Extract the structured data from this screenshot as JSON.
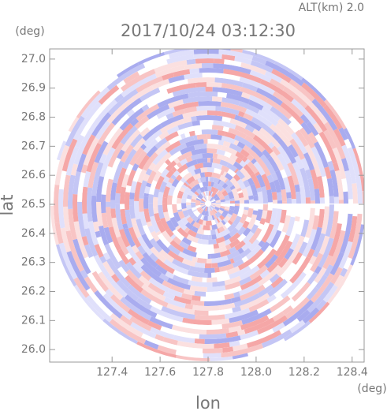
{
  "chart_data": {
    "type": "ppi",
    "title": "2017/10/24 03:12:30",
    "annotation": "ALT(km) 2.0",
    "x_label": "lon",
    "y_label": "lat",
    "x_unit": "(deg)",
    "y_unit": "(deg)",
    "xlim": [
      127.14,
      128.45
    ],
    "ylim": [
      25.957,
      27.035
    ],
    "xticks": [
      127.4,
      127.6,
      127.8,
      {
        "value": 128,
        "label": "128.0"
      },
      128.2,
      128.4
    ],
    "yticks": [
      {
        "value": 26,
        "label": "26.0"
      },
      26.1,
      26.2,
      26.3,
      26.4,
      26.5,
      26.6,
      26.7,
      26.8,
      26.9,
      {
        "value": 27,
        "label": "27.0"
      }
    ]
  }
}
